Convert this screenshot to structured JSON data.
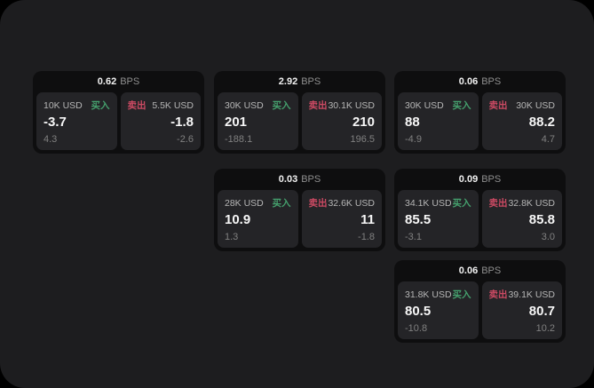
{
  "colors": {
    "buy_green": "#45a06d",
    "sell_red": "#cc4a63",
    "window_bg": "#1d1d1f",
    "card_bg": "#0e0e0f",
    "tile_bg": "#242427"
  },
  "bps_unit": "BPS",
  "cards": [
    {
      "bps": "0.62",
      "unit": "BPS",
      "buy": {
        "amount": "10K USD",
        "side": "买入",
        "value": "-3.7",
        "delta": "4.3"
      },
      "sell": {
        "side": "卖出",
        "amount": "5.5K USD",
        "value": "-1.8",
        "delta": "-2.6"
      }
    },
    {
      "bps": "2.92",
      "unit": "BPS",
      "buy": {
        "amount": "30K USD",
        "side": "买入",
        "value": "201",
        "delta": "-188.1"
      },
      "sell": {
        "side": "卖出",
        "amount": "30.1K USD",
        "value": "210",
        "delta": "196.5"
      }
    },
    {
      "bps": "0.06",
      "unit": "BPS",
      "buy": {
        "amount": "30K USD",
        "side": "买入",
        "value": "88",
        "delta": "-4.9"
      },
      "sell": {
        "side": "卖出",
        "amount": "30K USD",
        "value": "88.2",
        "delta": "4.7"
      }
    },
    {
      "bps": "0.03",
      "unit": "BPS",
      "buy": {
        "amount": "28K USD",
        "side": "买入",
        "value": "10.9",
        "delta": "1.3"
      },
      "sell": {
        "side": "卖出",
        "amount": "32.6K USD",
        "value": "11",
        "delta": "-1.8"
      }
    },
    {
      "bps": "0.09",
      "unit": "BPS",
      "buy": {
        "amount": "34.1K USD",
        "side": "买入",
        "value": "85.5",
        "delta": "-3.1"
      },
      "sell": {
        "side": "卖出",
        "amount": "32.8K USD",
        "value": "85.8",
        "delta": "3.0"
      }
    },
    {
      "bps": "0.06",
      "unit": "BPS",
      "buy": {
        "amount": "31.8K USD",
        "side": "买入",
        "value": "80.5",
        "delta": "-10.8"
      },
      "sell": {
        "side": "卖出",
        "amount": "39.1K USD",
        "value": "80.7",
        "delta": "10.2"
      }
    }
  ]
}
